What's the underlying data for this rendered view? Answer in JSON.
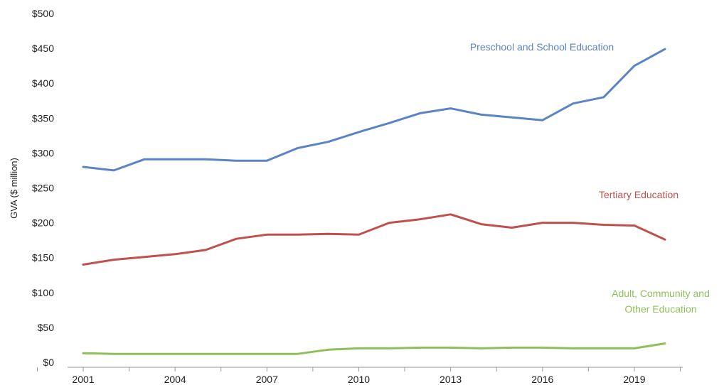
{
  "chart_data": {
    "type": "line",
    "ylabel": "GVA ($ million)",
    "xlabel": "",
    "ylim": [
      0,
      500
    ],
    "y_ticks": [
      {
        "value": 0,
        "label": "$0"
      },
      {
        "value": 50,
        "label": "$50"
      },
      {
        "value": 100,
        "label": "$100"
      },
      {
        "value": 150,
        "label": "$150"
      },
      {
        "value": 200,
        "label": "$200"
      },
      {
        "value": 250,
        "label": "$250"
      },
      {
        "value": 300,
        "label": "$300"
      },
      {
        "value": 350,
        "label": "$350"
      },
      {
        "value": 400,
        "label": "$400"
      },
      {
        "value": 450,
        "label": "$450"
      },
      {
        "value": 500,
        "label": "$500"
      }
    ],
    "x_tick_labels": [
      "2001",
      "2004",
      "2007",
      "2010",
      "2013",
      "2016",
      "2019"
    ],
    "x": [
      2001,
      2002,
      2003,
      2004,
      2005,
      2006,
      2007,
      2008,
      2009,
      2010,
      2011,
      2012,
      2013,
      2014,
      2015,
      2016,
      2017,
      2018,
      2019,
      2020
    ],
    "grid": false,
    "series": [
      {
        "name": "Preschool and School Education",
        "label_lines": [
          "Preschool and School Education"
        ],
        "color": "#5b84c4",
        "values": [
          280,
          275,
          291,
          291,
          291,
          289,
          289,
          307,
          316,
          330,
          343,
          357,
          364,
          355,
          351,
          347,
          371,
          380,
          425,
          449
        ]
      },
      {
        "name": "Tertiary Education",
        "label_lines": [
          "Tertiary Education"
        ],
        "color": "#c0504d",
        "values": [
          140,
          147,
          151,
          155,
          161,
          177,
          183,
          183,
          184,
          183,
          200,
          205,
          212,
          198,
          193,
          200,
          200,
          197,
          196,
          176
        ]
      },
      {
        "name": "Adult, Community and Other Education",
        "label_lines": [
          "Adult, Community and",
          "Other Education"
        ],
        "color": "#8fbf5a",
        "values": [
          13,
          12,
          12,
          12,
          12,
          12,
          12,
          12,
          18,
          20,
          20,
          21,
          21,
          20,
          21,
          21,
          20,
          20,
          20,
          27
        ]
      }
    ]
  }
}
